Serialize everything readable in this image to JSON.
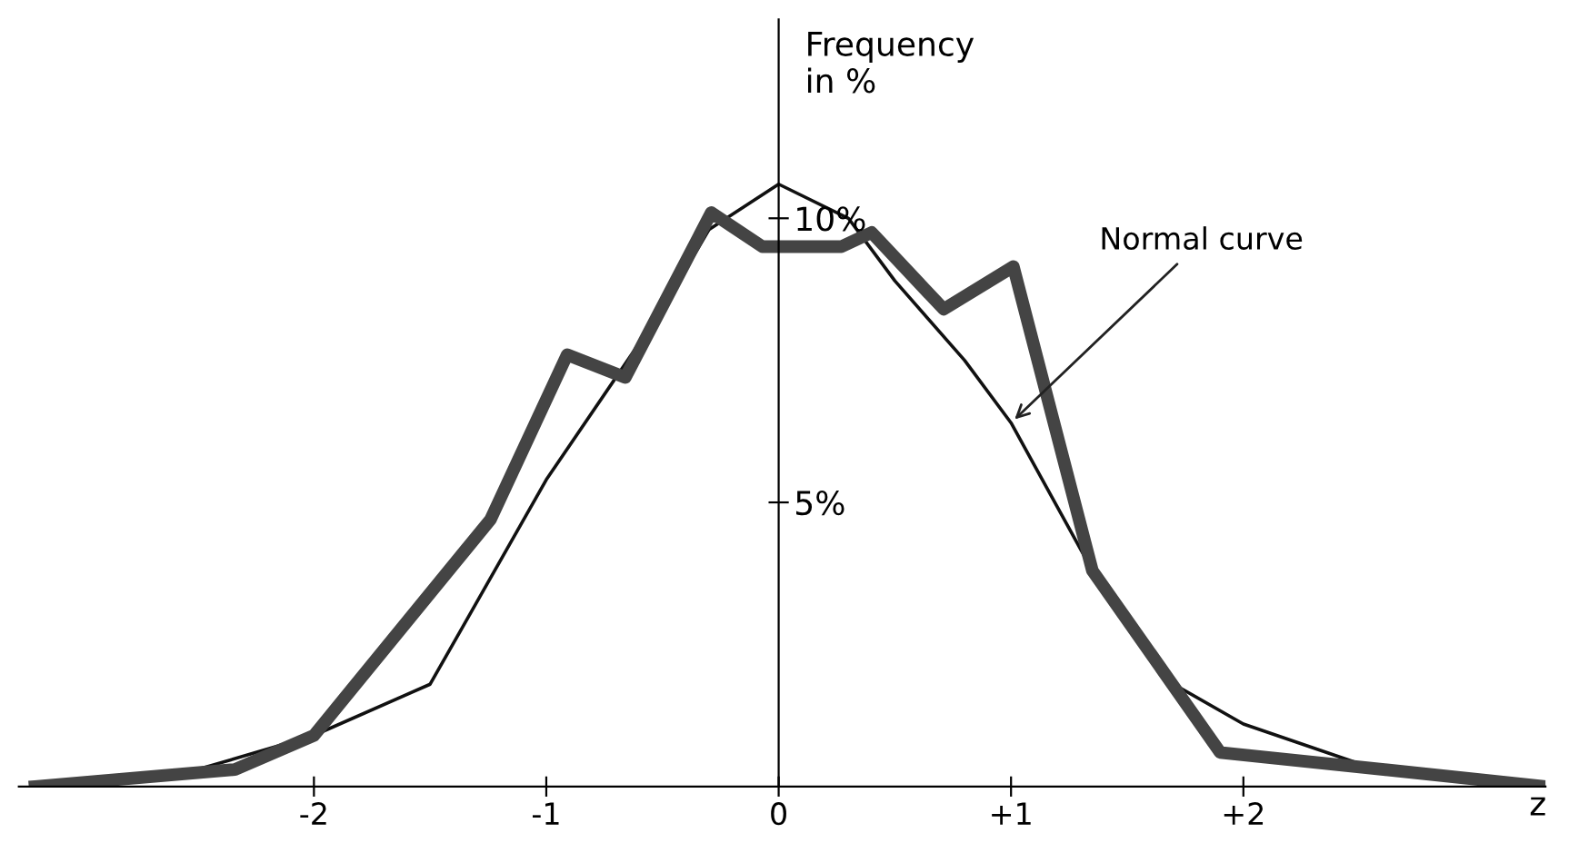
{
  "chart_data": {
    "type": "line",
    "xlabel": "z",
    "ylabel": "Frequency\nin %",
    "xlim": [
      -3.27,
      3.3
    ],
    "ylim": [
      0,
      13.5
    ],
    "xticks": [
      {
        "value": -2,
        "label": "-2"
      },
      {
        "value": -1,
        "label": "-1"
      },
      {
        "value": 0,
        "label": "0"
      },
      {
        "value": 1,
        "label": "+1"
      },
      {
        "value": 2,
        "label": "+2"
      }
    ],
    "yticks": [
      {
        "value": 5,
        "label": "5%"
      },
      {
        "value": 10,
        "label": "10%"
      }
    ],
    "grid": false,
    "legend": false,
    "marker": "none",
    "line_style": "solid",
    "series": [
      {
        "color": "#444444",
        "x": [
          -3.2,
          -2.34,
          -2.0,
          -1.24,
          -0.91,
          -0.66,
          -0.29,
          -0.07,
          0.27,
          0.4,
          0.71,
          1.01,
          1.35,
          1.9,
          3.3
        ],
        "values": [
          0,
          0.3,
          0.9,
          4.7,
          7.6,
          7.2,
          10.1,
          9.5,
          9.5,
          9.75,
          8.4,
          9.15,
          3.8,
          0.6,
          0
        ]
      },
      {
        "color": "#111111",
        "x": [
          -3.2,
          -2.5,
          -2.0,
          -1.5,
          -1.0,
          -0.5,
          -0.3,
          0.0,
          0.3,
          0.5,
          0.8,
          1.0,
          1.35,
          1.7,
          2.0,
          2.5,
          3.3
        ],
        "values": [
          0,
          0.3,
          0.9,
          1.8,
          5.4,
          8.4,
          9.8,
          10.6,
          10.0,
          8.9,
          7.5,
          6.4,
          3.8,
          1.8,
          1.1,
          0.4,
          0
        ]
      }
    ],
    "annotations": [
      {
        "text": "Normal curve",
        "x": 1.0,
        "y": 6.4
      }
    ]
  }
}
